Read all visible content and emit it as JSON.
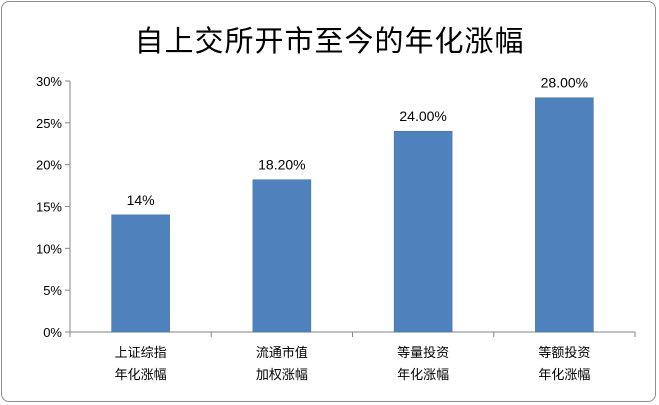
{
  "chart_data": {
    "type": "bar",
    "title": "自上交所开市至今的年化涨幅",
    "xlabel": "",
    "ylabel": "",
    "categories": [
      [
        "上证综指",
        "年化涨幅"
      ],
      [
        "流通市值",
        "加权涨幅"
      ],
      [
        "等量投资",
        "年化涨幅"
      ],
      [
        "等额投资",
        "年化涨幅"
      ]
    ],
    "values": [
      14,
      18.2,
      24,
      28
    ],
    "data_labels": [
      "14%",
      "18.20%",
      "24.00%",
      "28.00%"
    ],
    "y_ticks": [
      "0%",
      "5%",
      "10%",
      "15%",
      "20%",
      "25%",
      "30%"
    ],
    "ylim": [
      0,
      30
    ],
    "grid": false,
    "legend": "none",
    "bar_color": "#4f81bd"
  }
}
